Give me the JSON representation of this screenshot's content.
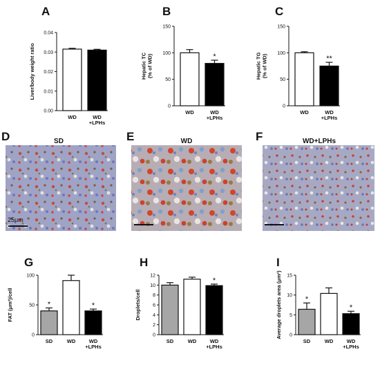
{
  "panels_top_letters": [
    "A",
    "B",
    "C"
  ],
  "micrographs": [
    {
      "letter": "D",
      "title": "SD",
      "scale_label": "25μm"
    },
    {
      "letter": "E",
      "title": "WD",
      "scale_label": ""
    },
    {
      "letter": "F",
      "title": "WD+LPHs",
      "scale_label": ""
    }
  ],
  "colors": {
    "SD": "#a6a6a6",
    "WD": "#ffffff",
    "WD+LPHs": "#000000"
  },
  "chart_data": [
    {
      "letter": "A",
      "type": "bar",
      "categories": [
        "WD",
        "WD\n+LPHs"
      ],
      "category_keys": [
        "WD",
        "WD+LPHs"
      ],
      "values": [
        0.0315,
        0.031
      ],
      "errors": [
        0.0004,
        0.0004
      ],
      "sig": [
        "",
        ""
      ],
      "ylabel": "Liver/body weight ratio",
      "ylim": [
        0,
        0.04
      ],
      "yticks": [
        0.0,
        0.01,
        0.02,
        0.03,
        0.04
      ],
      "ytick_labels": [
        "0.00",
        "0.01",
        "0.02",
        "0.03",
        "0.04"
      ]
    },
    {
      "letter": "B",
      "type": "bar",
      "categories": [
        "WD",
        "WD\n+LPHs"
      ],
      "category_keys": [
        "WD",
        "WD+LPHs"
      ],
      "values": [
        100,
        80
      ],
      "errors": [
        6,
        6
      ],
      "sig": [
        "",
        "*"
      ],
      "ylabel": "Hepatic TC\n(% of WD)",
      "ylim": [
        0,
        150
      ],
      "yticks": [
        0,
        50,
        100,
        150
      ],
      "ytick_labels": [
        "0",
        "50",
        "100",
        "150"
      ]
    },
    {
      "letter": "C",
      "type": "bar",
      "categories": [
        "WD",
        "WD\n+LPHs"
      ],
      "category_keys": [
        "WD",
        "WD+LPHs"
      ],
      "values": [
        100,
        75
      ],
      "errors": [
        2,
        7
      ],
      "sig": [
        "",
        "**"
      ],
      "ylabel": "Hepatic TG\n(% of WD)",
      "ylim": [
        0,
        150
      ],
      "yticks": [
        0,
        50,
        100,
        150
      ],
      "ytick_labels": [
        "0",
        "50",
        "100",
        "150"
      ]
    },
    {
      "letter": "G",
      "type": "bar",
      "categories": [
        "SD",
        "WD",
        "WD\n+LPHs"
      ],
      "category_keys": [
        "SD",
        "WD",
        "WD+LPHs"
      ],
      "values": [
        40,
        91,
        40
      ],
      "errors": [
        5,
        9,
        3
      ],
      "sig": [
        "*",
        "",
        "*"
      ],
      "ylabel": "FAT (μm³)/cell",
      "ylim": [
        0,
        100
      ],
      "yticks": [
        0,
        50,
        100
      ],
      "ytick_labels": [
        "0",
        "50",
        "100"
      ]
    },
    {
      "letter": "H",
      "type": "bar",
      "categories": [
        "SD",
        "WD",
        "WD\n+LPHs"
      ],
      "category_keys": [
        "SD",
        "WD",
        "WD+LPHs"
      ],
      "values": [
        10.0,
        11.2,
        9.9
      ],
      "errors": [
        0.5,
        0.4,
        0.3
      ],
      "sig": [
        "",
        "",
        "*"
      ],
      "ylabel": "Droplets/cell",
      "ylim": [
        0,
        12
      ],
      "yticks": [
        0,
        2,
        4,
        6,
        8,
        10,
        12
      ],
      "ytick_labels": [
        "0",
        "2",
        "4",
        "6",
        "8",
        "10",
        "12"
      ]
    },
    {
      "letter": "I",
      "type": "bar",
      "categories": [
        "SD",
        "WD",
        "WD\n+LPHs"
      ],
      "category_keys": [
        "SD",
        "WD",
        "WD+LPHs"
      ],
      "values": [
        6.4,
        10.4,
        5.3
      ],
      "errors": [
        1.6,
        1.4,
        0.6
      ],
      "sig": [
        "*",
        "",
        "*"
      ],
      "ylabel": "Average droplets area (μm²)",
      "ylim": [
        0,
        15
      ],
      "yticks": [
        0,
        5,
        10,
        15
      ],
      "ytick_labels": [
        "0",
        "5",
        "10",
        "15"
      ]
    }
  ]
}
